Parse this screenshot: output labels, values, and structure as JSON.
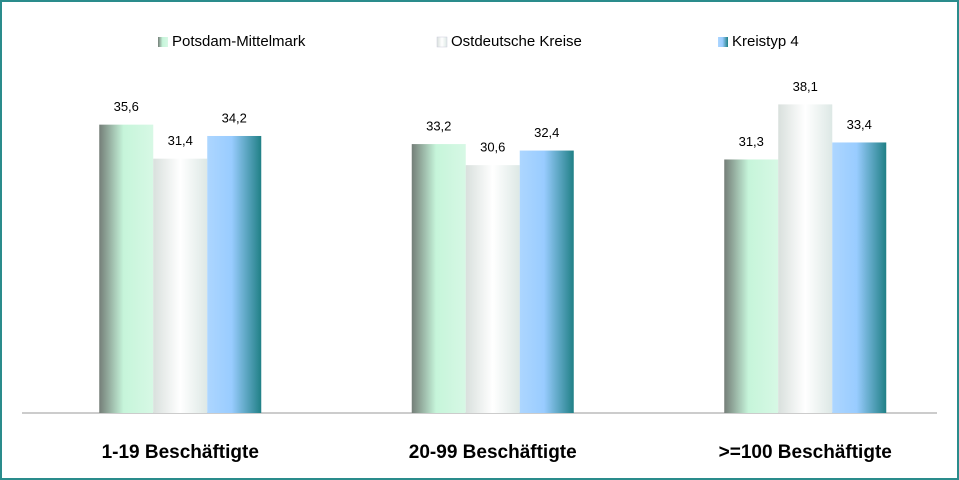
{
  "chart_data": {
    "type": "bar",
    "categories": [
      "1-19 Beschäftigte",
      "20-99 Beschäftigte",
      ">=100 Beschäftigte"
    ],
    "series": [
      {
        "name": "Potsdam-Mittelmark",
        "color": "#c6f5da",
        "values": [
          35.6,
          33.2,
          31.3
        ],
        "value_labels": [
          "35,6",
          "33,2",
          "31,3"
        ]
      },
      {
        "name": "Ostdeutsche Kreise",
        "color": "#f2f8f6",
        "values": [
          31.4,
          30.6,
          38.1
        ],
        "value_labels": [
          "31,4",
          "30,6",
          "38,1"
        ]
      },
      {
        "name": "Kreistyp 4",
        "color": "#99ccff",
        "values": [
          34.2,
          32.4,
          33.4
        ],
        "value_labels": [
          "34,2",
          "32,4",
          "33,4"
        ]
      }
    ],
    "ylim": [
      0,
      40
    ],
    "legend": "top"
  }
}
